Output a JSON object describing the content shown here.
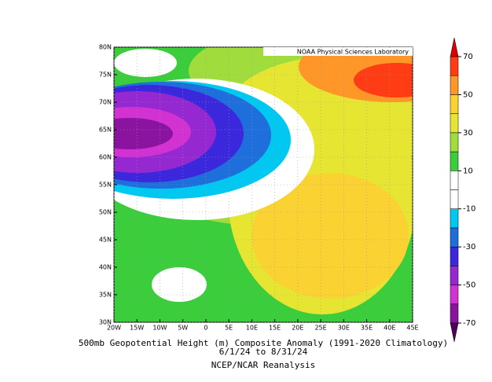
{
  "chart_data": {
    "type": "contour-map",
    "credit": "NOAA Physical Sciences Laboratory",
    "title": "500mb Geopotential Height (m) Composite Anomaly (1991-2020 Climatology)",
    "subtitle": "6/1/24  to 8/31/24",
    "source": "NCEP/NCAR Reanalysis",
    "xlim": [
      -20,
      45
    ],
    "ylim": [
      30,
      80
    ],
    "xticks": [
      {
        "value": -20,
        "label": "20W"
      },
      {
        "value": -15,
        "label": "15W"
      },
      {
        "value": -10,
        "label": "10W"
      },
      {
        "value": -5,
        "label": "5W"
      },
      0,
      {
        "value": 5,
        "label": "5E"
      },
      {
        "value": 10,
        "label": "10E"
      },
      {
        "value": 15,
        "label": "15E"
      },
      {
        "value": 20,
        "label": "20E"
      },
      {
        "value": 25,
        "label": "25E"
      },
      {
        "value": 30,
        "label": "30E"
      },
      {
        "value": 35,
        "label": "35E"
      },
      {
        "value": 40,
        "label": "40E"
      },
      {
        "value": 45,
        "label": "45E"
      }
    ],
    "yticks": [
      {
        "value": 30,
        "label": "30N"
      },
      {
        "value": 35,
        "label": "35N"
      },
      {
        "value": 40,
        "label": "40N"
      },
      {
        "value": 45,
        "label": "45N"
      },
      {
        "value": 50,
        "label": "50N"
      },
      {
        "value": 55,
        "label": "55N"
      },
      {
        "value": 60,
        "label": "60N"
      },
      {
        "value": 65,
        "label": "65N"
      },
      {
        "value": 70,
        "label": "70N"
      },
      {
        "value": 75,
        "label": "75N"
      },
      {
        "value": 80,
        "label": "80N"
      }
    ],
    "grid": true,
    "colorbar": {
      "lim": [
        -70,
        70
      ],
      "ticks": [
        -70,
        -50,
        -30,
        -10,
        10,
        30,
        50,
        70
      ],
      "step": 10,
      "colors": [
        "#8a14a0",
        "#d232d2",
        "#9628d2",
        "#3c28dc",
        "#1e6edc",
        "#00c8f0",
        "#ffffff",
        "#ffffff",
        "#3ccd3c",
        "#a0dc3c",
        "#e6e632",
        "#fad232",
        "#ff9628",
        "#ff3c14"
      ],
      "under_color": "#50005a",
      "over_color": "#dc0000"
    }
  }
}
